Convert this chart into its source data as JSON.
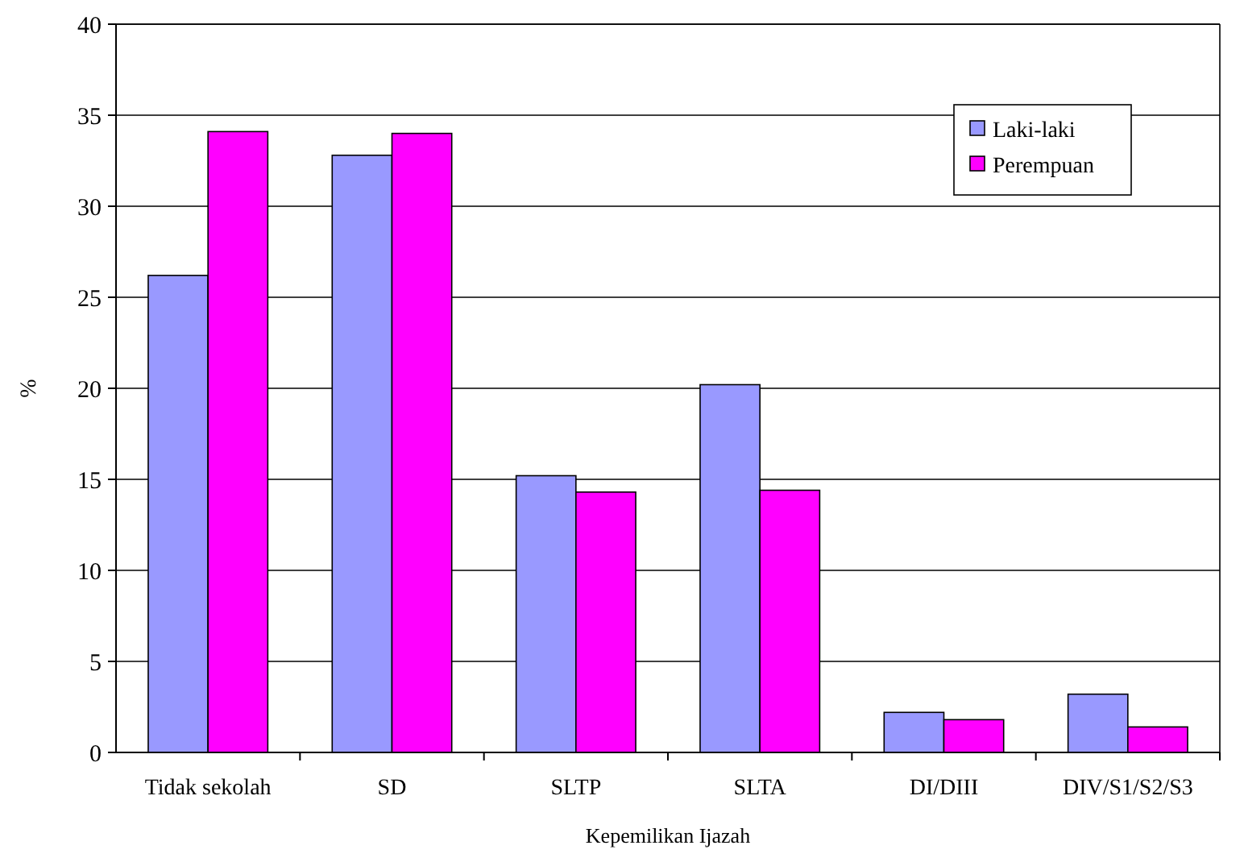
{
  "chart_data": {
    "type": "bar",
    "xlabel": "Kepemilikan Ijazah",
    "ylabel": "%",
    "categories": [
      "Tidak sekolah",
      "SD",
      "SLTP",
      "SLTA",
      "DI/DIII",
      "DIV/S1/S2/S3"
    ],
    "series": [
      {
        "name": "Laki-laki",
        "color": "#9999ff",
        "values": [
          26.2,
          32.8,
          15.2,
          20.2,
          2.2,
          3.2
        ]
      },
      {
        "name": "Perempuan",
        "color": "#ff00ff",
        "values": [
          34.1,
          34.0,
          14.3,
          14.4,
          1.8,
          1.4
        ]
      }
    ],
    "ylim": [
      0,
      40
    ],
    "yticks": [
      0,
      5,
      10,
      15,
      20,
      25,
      30,
      35,
      40
    ],
    "grid": "y",
    "legend": "top right"
  }
}
